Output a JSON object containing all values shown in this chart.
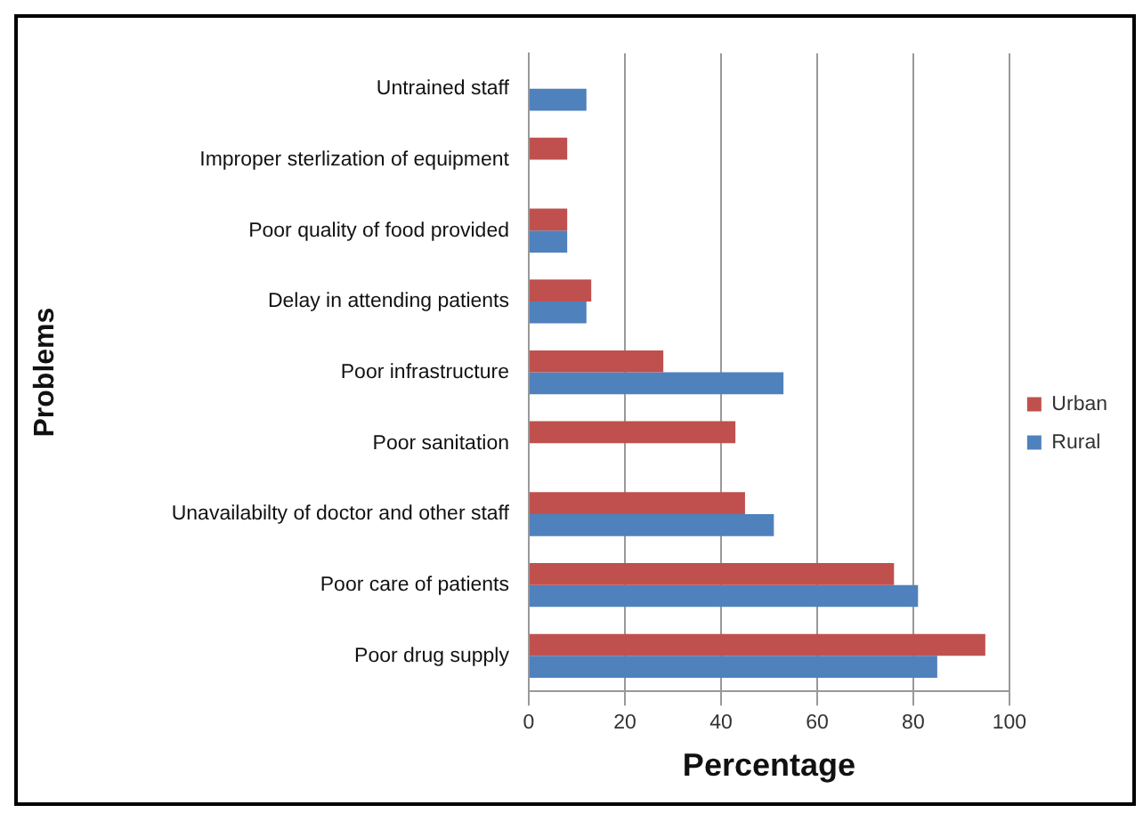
{
  "chart_data": {
    "type": "bar",
    "orientation": "horizontal",
    "xlabel": "Percentage",
    "ylabel": "Problems",
    "categories": [
      "Untrained staff",
      "Improper sterlization of equipment",
      "Poor quality of food provided",
      "Delay in attending patients",
      "Poor infrastructure",
      "Poor sanitation",
      "Unavailabilty of doctor and other staff",
      "Poor care of patients",
      "Poor drug supply"
    ],
    "series": [
      {
        "name": "Urban",
        "color": "#c0504d",
        "values": [
          null,
          8,
          8,
          13,
          28,
          43,
          45,
          76,
          95
        ]
      },
      {
        "name": "Rural",
        "color": "#4f81bd",
        "values": [
          12,
          null,
          8,
          12,
          53,
          null,
          51,
          81,
          85
        ]
      }
    ],
    "xlim": [
      0,
      100
    ],
    "xticks": [
      0,
      20,
      40,
      60,
      80,
      100
    ],
    "grid": "x",
    "legend": "right"
  }
}
